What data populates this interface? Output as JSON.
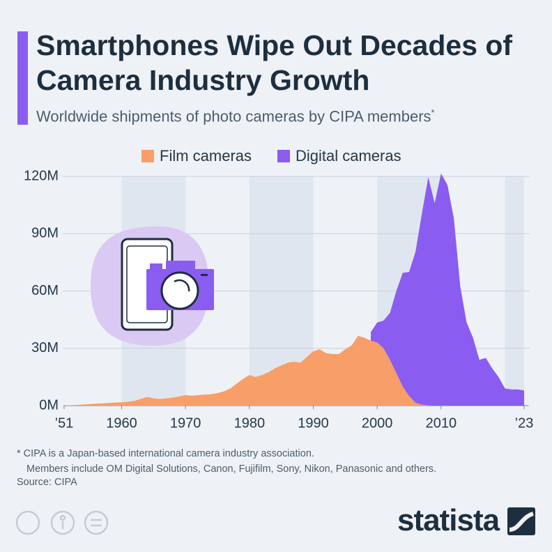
{
  "title": "Smartphones Wipe Out Decades of Camera Industry Growth",
  "subtitle": "Worldwide shipments of photo cameras by CIPA members",
  "subtitle_marker": "*",
  "chart_data": {
    "type": "area",
    "x": [
      1951,
      1952,
      1953,
      1954,
      1955,
      1956,
      1957,
      1958,
      1959,
      1960,
      1961,
      1962,
      1963,
      1964,
      1965,
      1966,
      1967,
      1968,
      1969,
      1970,
      1971,
      1972,
      1973,
      1974,
      1975,
      1976,
      1977,
      1978,
      1979,
      1980,
      1981,
      1982,
      1983,
      1984,
      1985,
      1986,
      1987,
      1988,
      1989,
      1990,
      1991,
      1992,
      1993,
      1994,
      1995,
      1996,
      1997,
      1998,
      1999,
      2000,
      2001,
      2002,
      2003,
      2004,
      2005,
      2006,
      2007,
      2008,
      2009,
      2010,
      2011,
      2012,
      2013,
      2014,
      2015,
      2016,
      2017,
      2018,
      2019,
      2020,
      2021,
      2022,
      2023
    ],
    "series": [
      {
        "name": "Film cameras",
        "color": "#f89e68",
        "values": [
          0,
          0.2,
          0.4,
          0.6,
          0.8,
          1,
          1.2,
          1.4,
          1.6,
          1.8,
          2,
          2.5,
          3.5,
          4.5,
          3.8,
          3.5,
          3.8,
          4.2,
          4.8,
          5.5,
          5.2,
          5.5,
          5.8,
          6,
          6.5,
          7.5,
          9,
          11.5,
          14,
          16,
          15,
          16,
          17.5,
          19.5,
          21,
          22.5,
          23,
          22.5,
          25.5,
          28.5,
          29.5,
          27.5,
          27,
          27,
          29.5,
          31.5,
          36.5,
          35.5,
          34,
          33,
          30,
          24,
          17,
          10,
          5,
          1.5,
          0.5,
          0.1,
          null,
          null,
          null,
          null,
          null,
          null,
          null,
          null,
          null,
          null,
          null,
          null,
          null,
          null,
          null
        ]
      },
      {
        "name": "Digital cameras",
        "color": "#8b5cf0",
        "stacked": true,
        "values": [
          null,
          null,
          null,
          null,
          null,
          null,
          null,
          null,
          null,
          null,
          null,
          null,
          null,
          null,
          null,
          null,
          null,
          null,
          null,
          null,
          null,
          null,
          null,
          null,
          null,
          null,
          null,
          null,
          null,
          null,
          null,
          null,
          null,
          null,
          null,
          null,
          null,
          null,
          null,
          null,
          null,
          null,
          null,
          null,
          null,
          null,
          null,
          null,
          4.5,
          10.5,
          14.5,
          24.5,
          43,
          59.5,
          65,
          79,
          100,
          119.5,
          106,
          121.5,
          115.5,
          98,
          62.5,
          43.5,
          35.5,
          24,
          25,
          19.5,
          15,
          9,
          8.5,
          8.5,
          8
        ]
      }
    ],
    "xlim": [
      1951,
      2023
    ],
    "xticks": [
      {
        "value": 1951,
        "label": "’51"
      },
      1960,
      1970,
      1980,
      1990,
      2000,
      2010,
      {
        "value": 2023,
        "label": "’23"
      }
    ],
    "ylim": [
      0,
      120
    ],
    "yticks": [
      {
        "value": 0,
        "label": "0M"
      },
      {
        "value": 30,
        "label": "30M"
      },
      {
        "value": 60,
        "label": "60M"
      },
      {
        "value": 90,
        "label": "90M"
      },
      {
        "value": 120,
        "label": "120M"
      }
    ],
    "grid": true,
    "legend": "top"
  },
  "footnote": [
    "* CIPA is a Japan-based international camera industry association.",
    "Members include OM Digital Solutions, Canon, Fujifilm, Sony, Nikon, Panasonic and others."
  ],
  "source": "Source: CIPA",
  "logo": "statista"
}
